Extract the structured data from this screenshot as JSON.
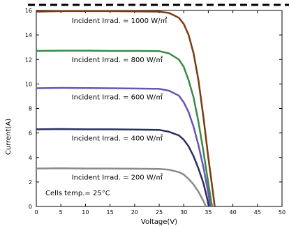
{
  "chart_data": {
    "type": "line",
    "xlabel": "Voltage(V)",
    "ylabel": "Current(A)",
    "xlim": [
      0,
      50
    ],
    "ylim": [
      0,
      16
    ],
    "x_ticks": [
      0,
      5,
      10,
      15,
      20,
      25,
      30,
      35,
      40,
      45,
      50
    ],
    "y_ticks": [
      0,
      2,
      4,
      6,
      8,
      10,
      12,
      14,
      16
    ],
    "grid": false,
    "legend": "none",
    "annotation": "Cells temp.= 25°C",
    "series": [
      {
        "name": "Incident Irrad. = 1000 W/㎡",
        "color": "#7a3b10",
        "x": [
          0,
          5,
          10,
          15,
          20,
          25,
          27,
          29,
          30,
          31,
          32,
          33,
          34,
          35,
          36,
          36.3
        ],
        "y": [
          15.9,
          15.95,
          15.95,
          15.95,
          15.93,
          15.9,
          15.8,
          15.4,
          14.9,
          14.0,
          12.5,
          10.3,
          7.3,
          4.0,
          1.0,
          0
        ]
      },
      {
        "name": "Incident Irrad. = 800 W/㎡",
        "color": "#3a8a45",
        "x": [
          0,
          5,
          10,
          15,
          20,
          25,
          27,
          29,
          30,
          31,
          32,
          33,
          34,
          35,
          35.6,
          35.8
        ],
        "y": [
          12.7,
          12.72,
          12.72,
          12.7,
          12.7,
          12.68,
          12.5,
          12.0,
          11.4,
          10.3,
          8.9,
          6.9,
          4.5,
          1.9,
          0.4,
          0
        ]
      },
      {
        "name": "Incident Irrad. = 600 W/㎡",
        "color": "#6a55b0",
        "x": [
          0,
          5,
          10,
          15,
          20,
          25,
          27,
          29,
          30,
          31,
          32,
          33,
          34,
          35,
          35.4
        ],
        "y": [
          9.65,
          9.68,
          9.67,
          9.65,
          9.63,
          9.6,
          9.45,
          9.05,
          8.5,
          7.7,
          6.5,
          5.0,
          3.2,
          1.1,
          0
        ]
      },
      {
        "name": "Incident Irrad. = 400 W/㎡",
        "color": "#2b2f5e",
        "x": [
          0,
          5,
          10,
          15,
          20,
          25,
          27,
          29,
          30,
          31,
          32,
          33,
          34,
          34.8,
          35.1
        ],
        "y": [
          6.3,
          6.32,
          6.3,
          6.3,
          6.28,
          6.25,
          6.1,
          5.8,
          5.45,
          4.9,
          4.1,
          3.1,
          1.9,
          0.6,
          0
        ]
      },
      {
        "name": "Incident Irrad. = 200 W/㎡",
        "color": "#8a8a8a",
        "x": [
          0,
          5,
          10,
          15,
          20,
          25,
          27,
          29,
          30,
          31,
          32,
          33,
          34,
          34.5
        ],
        "y": [
          3.1,
          3.12,
          3.1,
          3.1,
          3.08,
          3.06,
          3.0,
          2.8,
          2.6,
          2.25,
          1.8,
          1.2,
          0.45,
          0
        ]
      }
    ]
  }
}
